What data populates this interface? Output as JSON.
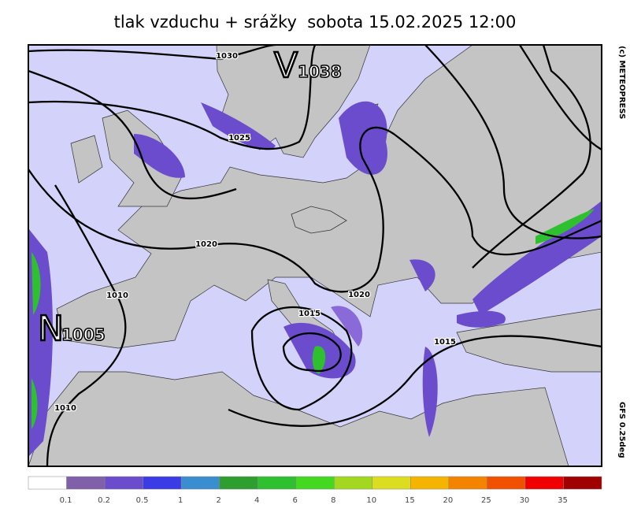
{
  "title": "tlak vzduchu + srážky  sobota 15.02.2025 12:00",
  "copyright": "(c) METEOPRESS",
  "model": "GFS 0.25deg",
  "centers": [
    {
      "letter": "V",
      "value": 1038
    },
    {
      "letter": "N",
      "value": 1005
    }
  ],
  "isobar_labels": [
    1030,
    1025,
    1020,
    1010,
    1020,
    1015,
    1015,
    1010
  ],
  "legend": {
    "colors": [
      "#ffffff",
      "#8060a8",
      "#6a4ccc",
      "#3c3ce6",
      "#3a8ed0",
      "#2e9e30",
      "#2ec02e",
      "#44d820",
      "#a2d820",
      "#dcdc20",
      "#f4b400",
      "#f48400",
      "#f05000",
      "#f00000",
      "#a00000"
    ],
    "labels": [
      0.1,
      0.2,
      0.5,
      1,
      2,
      4,
      6,
      8,
      10,
      15,
      20,
      25,
      30,
      35
    ]
  }
}
